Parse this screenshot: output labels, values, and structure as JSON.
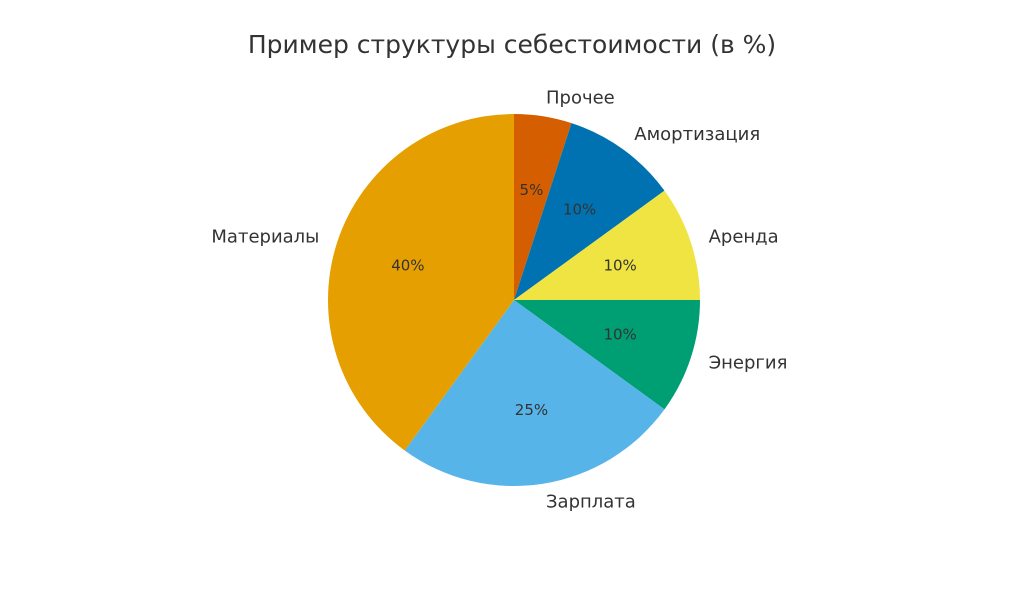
{
  "chart_data": {
    "type": "pie",
    "title": "Пример структуры себестоимости (в %)",
    "start_angle_deg": 90,
    "direction": "clockwise",
    "slices": [
      {
        "label": "Прочее",
        "value": 5,
        "pct_label": "5%",
        "color": "#d55e00"
      },
      {
        "label": "Амортизация",
        "value": 10,
        "pct_label": "10%",
        "color": "#0072b2"
      },
      {
        "label": "Аренда",
        "value": 10,
        "pct_label": "10%",
        "color": "#f0e442"
      },
      {
        "label": "Энергия",
        "value": 10,
        "pct_label": "10%",
        "color": "#009e73"
      },
      {
        "label": "Зарплата",
        "value": 25,
        "pct_label": "25%",
        "color": "#56b4e9"
      },
      {
        "label": "Материалы",
        "value": 40,
        "pct_label": "40%",
        "color": "#e69f00"
      }
    ]
  }
}
